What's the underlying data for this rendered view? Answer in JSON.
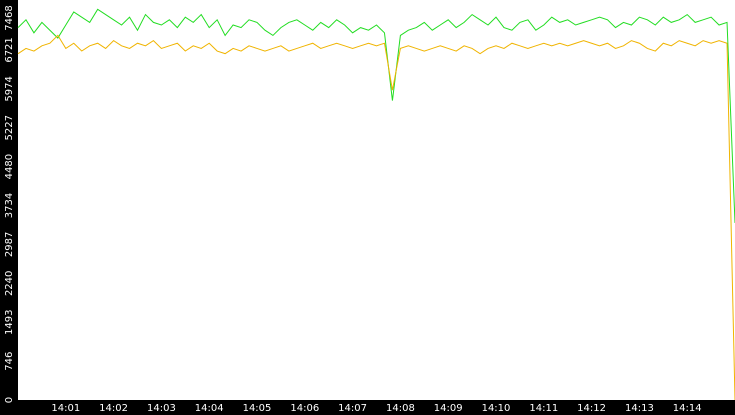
{
  "chart_data": {
    "type": "line",
    "categories": [
      null,
      null,
      null,
      null,
      null,
      null,
      "14:01",
      null,
      null,
      null,
      null,
      null,
      "14:02",
      null,
      null,
      null,
      null,
      null,
      "14:03",
      null,
      null,
      null,
      null,
      null,
      "14:04",
      null,
      null,
      null,
      null,
      null,
      "14:05",
      null,
      null,
      null,
      null,
      null,
      "14:06",
      null,
      null,
      null,
      null,
      null,
      "14:07",
      null,
      null,
      null,
      null,
      null,
      "14:08",
      null,
      null,
      null,
      null,
      null,
      "14:09",
      null,
      null,
      null,
      null,
      null,
      "14:10",
      null,
      null,
      null,
      null,
      null,
      "14:11",
      null,
      null,
      null,
      null,
      null,
      "14:12",
      null,
      null,
      null,
      null,
      null,
      "14:13",
      null,
      null,
      null,
      null,
      null,
      "14:14",
      null,
      null,
      null,
      null,
      null,
      null
    ],
    "series": [
      {
        "color": "#22dd22",
        "values": [
          7150,
          7300,
          7050,
          7250,
          7100,
          6950,
          7200,
          7450,
          7350,
          7250,
          7500,
          7400,
          7300,
          7200,
          7350,
          7100,
          7400,
          7250,
          7200,
          7300,
          7150,
          7350,
          7250,
          7400,
          7150,
          7300,
          7000,
          7200,
          7150,
          7300,
          7250,
          7100,
          7000,
          7150,
          7250,
          7300,
          7200,
          7100,
          7250,
          7150,
          7300,
          7200,
          7050,
          7150,
          7100,
          7200,
          7050,
          5750,
          7000,
          7100,
          7150,
          7250,
          7100,
          7200,
          7300,
          7150,
          7250,
          7400,
          7300,
          7200,
          7350,
          7150,
          7100,
          7250,
          7300,
          7100,
          7200,
          7350,
          7250,
          7300,
          7200,
          7250,
          7300,
          7350,
          7300,
          7150,
          7250,
          7200,
          7350,
          7300,
          7200,
          7350,
          7250,
          7300,
          7400,
          7250,
          7300,
          7350,
          7200,
          7250,
          3400
        ]
      },
      {
        "color": "#f0b400",
        "values": [
          6650,
          6750,
          6700,
          6800,
          6850,
          7000,
          6750,
          6850,
          6700,
          6800,
          6850,
          6750,
          6900,
          6800,
          6750,
          6850,
          6800,
          6900,
          6750,
          6800,
          6850,
          6700,
          6800,
          6750,
          6850,
          6700,
          6650,
          6750,
          6700,
          6800,
          6750,
          6700,
          6750,
          6800,
          6700,
          6750,
          6800,
          6850,
          6750,
          6800,
          6850,
          6800,
          6750,
          6800,
          6850,
          6800,
          6850,
          5950,
          6750,
          6800,
          6750,
          6700,
          6750,
          6800,
          6750,
          6700,
          6800,
          6750,
          6650,
          6750,
          6800,
          6750,
          6850,
          6800,
          6750,
          6800,
          6850,
          6800,
          6850,
          6800,
          6850,
          6900,
          6850,
          6800,
          6850,
          6750,
          6800,
          6900,
          6850,
          6750,
          6700,
          6850,
          6800,
          6900,
          6850,
          6800,
          6900,
          6850,
          6900,
          6850,
          0
        ]
      }
    ],
    "ylim": [
      0,
      7680
    ],
    "yticks": [
      0,
      746,
      1493,
      2240,
      2987,
      3734,
      4480,
      5227,
      5974,
      6721,
      7468
    ],
    "grid": false
  }
}
